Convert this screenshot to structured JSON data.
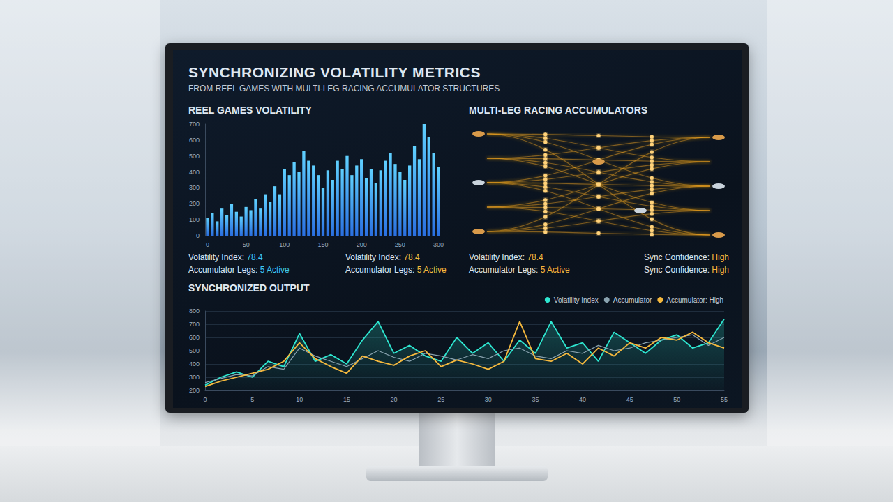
{
  "header": {
    "title": "SYNCHRONIZING VOLATILITY METRICS",
    "subtitle": "FROM REEL GAMES WITH MULTI-LEG RACING ACCUMULATOR STRUCTURES"
  },
  "panels": [
    {
      "title": "MULTI-LEG RACING ACCUMULATORS"
    }
  ],
  "stats": [
    {
      "color": "#3fc8f0",
      "items": [
        {
          "label": "Volatility Index:",
          "value": "78.4"
        },
        {
          "label": "Accumulator Legs:",
          "value": "5 Active"
        }
      ]
    },
    {
      "color": "#f5b83d",
      "items": [
        {
          "label": "Volatility Index:",
          "value": "78.4"
        },
        {
          "label": "Accumulator Legs:",
          "value": "5 Active"
        }
      ]
    },
    {
      "color": "#f5b83d",
      "items": [
        {
          "label": "Volatility Index:",
          "value": "78.4"
        },
        {
          "label": "Accumulator Legs:",
          "value": "5 Active"
        }
      ]
    },
    {
      "color": "#f5b83d",
      "items": [
        {
          "label": "Sync Confidence:",
          "value": "High"
        },
        {
          "label": "Sync Confidence:",
          "value": "High"
        }
      ]
    }
  ],
  "chart_data": [
    {
      "type": "bar",
      "title": "REEL GAMES VOLATILITY",
      "categories": [
        "0",
        null,
        null,
        null,
        null,
        null,
        null,
        null,
        "50",
        null,
        null,
        null,
        null,
        null,
        null,
        null,
        "100",
        null,
        null,
        null,
        null,
        null,
        null,
        null,
        "150",
        null,
        null,
        null,
        null,
        null,
        null,
        null,
        "200",
        null,
        null,
        null,
        null,
        null,
        null,
        null,
        "250",
        null,
        null,
        null,
        null,
        null,
        null,
        null,
        "300"
      ],
      "values": [
        110,
        140,
        90,
        170,
        130,
        200,
        150,
        120,
        180,
        160,
        230,
        170,
        260,
        210,
        310,
        260,
        420,
        380,
        460,
        400,
        530,
        470,
        440,
        380,
        300,
        410,
        350,
        470,
        420,
        500,
        380,
        440,
        480,
        360,
        420,
        330,
        410,
        470,
        520,
        450,
        400,
        350,
        440,
        560,
        480,
        700,
        620,
        520,
        430
      ],
      "color": "#2a6fe0",
      "ylim": [
        0,
        700
      ],
      "yticks": [
        0,
        100,
        200,
        300,
        400,
        500,
        600,
        700
      ],
      "grid": false
    },
    {
      "type": "line",
      "title": "SYNCHRONIZED OUTPUT",
      "categories": [
        "0",
        null,
        null,
        "5",
        null,
        null,
        "10",
        null,
        null,
        "15",
        null,
        null,
        "20",
        null,
        null,
        "25",
        null,
        null,
        "30",
        null,
        null,
        "35",
        null,
        null,
        "40",
        null,
        null,
        "45",
        null,
        null,
        "50",
        null,
        null,
        "55"
      ],
      "series": [
        {
          "name": "Volatility Index",
          "color": "#2ee6d0",
          "values": [
            240,
            300,
            340,
            300,
            420,
            380,
            630,
            420,
            470,
            400,
            580,
            720,
            480,
            540,
            460,
            420,
            600,
            480,
            560,
            420,
            580,
            480,
            720,
            520,
            560,
            420,
            640,
            560,
            480,
            580,
            620,
            520,
            560,
            740
          ]
        },
        {
          "name": "Accumulator",
          "color": "#8aa3b0",
          "values": [
            260,
            290,
            320,
            310,
            380,
            360,
            520,
            460,
            420,
            380,
            440,
            500,
            450,
            420,
            480,
            460,
            430,
            470,
            440,
            500,
            520,
            460,
            440,
            500,
            480,
            540,
            500,
            520,
            560,
            580,
            600,
            620,
            540,
            600
          ]
        },
        {
          "name": "Accumulator: High",
          "color": "#f5b83d",
          "values": [
            230,
            270,
            300,
            330,
            360,
            420,
            560,
            440,
            380,
            330,
            460,
            420,
            390,
            460,
            500,
            380,
            430,
            400,
            360,
            420,
            720,
            440,
            420,
            480,
            400,
            520,
            460,
            560,
            520,
            600,
            580,
            640,
            560,
            520
          ]
        }
      ],
      "ylim": [
        200,
        800
      ],
      "yticks": [
        200,
        300,
        400,
        500,
        600,
        700,
        800
      ],
      "grid": true,
      "legend": "top-right"
    }
  ]
}
